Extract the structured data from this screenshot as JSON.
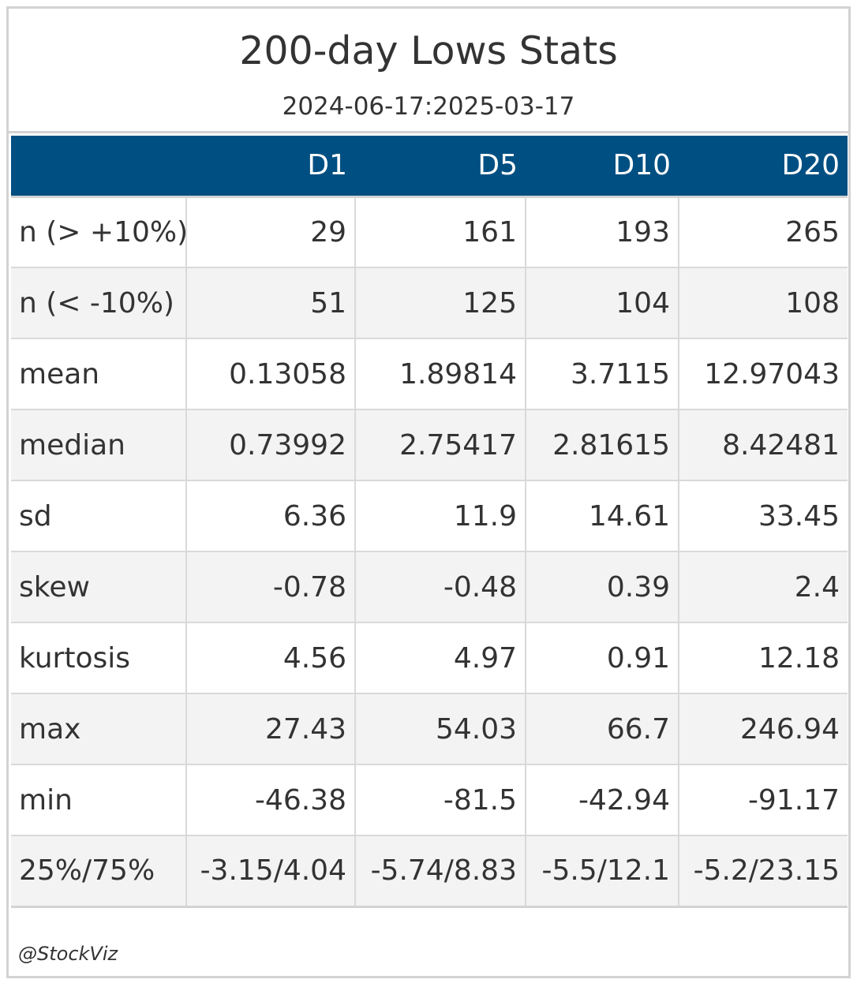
{
  "title": "200-day Lows Stats",
  "subtitle": "2024-06-17:2025-03-17",
  "colors": {
    "header_bg": "#004f82",
    "header_text": "#ffffff",
    "stripe": "#f3f3f3",
    "border": "#d3d3d3"
  },
  "table": {
    "columns": [
      "",
      "D1",
      "D5",
      "D10",
      "D20"
    ],
    "rows": [
      {
        "label": "n (> +10%)",
        "values": [
          "29",
          "161",
          "193",
          "265"
        ]
      },
      {
        "label": "n (< -10%)",
        "values": [
          "51",
          "125",
          "104",
          "108"
        ]
      },
      {
        "label": "mean",
        "values": [
          "0.13058",
          "1.89814",
          "3.7115",
          "12.97043"
        ]
      },
      {
        "label": "median",
        "values": [
          "0.73992",
          "2.75417",
          "2.81615",
          "8.42481"
        ]
      },
      {
        "label": "sd",
        "values": [
          "6.36",
          "11.9",
          "14.61",
          "33.45"
        ]
      },
      {
        "label": "skew",
        "values": [
          "-0.78",
          "-0.48",
          "0.39",
          "2.4"
        ]
      },
      {
        "label": "kurtosis",
        "values": [
          "4.56",
          "4.97",
          "0.91",
          "12.18"
        ]
      },
      {
        "label": "max",
        "values": [
          "27.43",
          "54.03",
          "66.7",
          "246.94"
        ]
      },
      {
        "label": "min",
        "values": [
          "-46.38",
          "-81.5",
          "-42.94",
          "-91.17"
        ]
      },
      {
        "label": "25%/75%",
        "values": [
          "-3.15/4.04",
          "-5.74/8.83",
          "-5.5/12.1",
          "-5.2/23.15"
        ]
      }
    ]
  },
  "footer": "@StockViz"
}
